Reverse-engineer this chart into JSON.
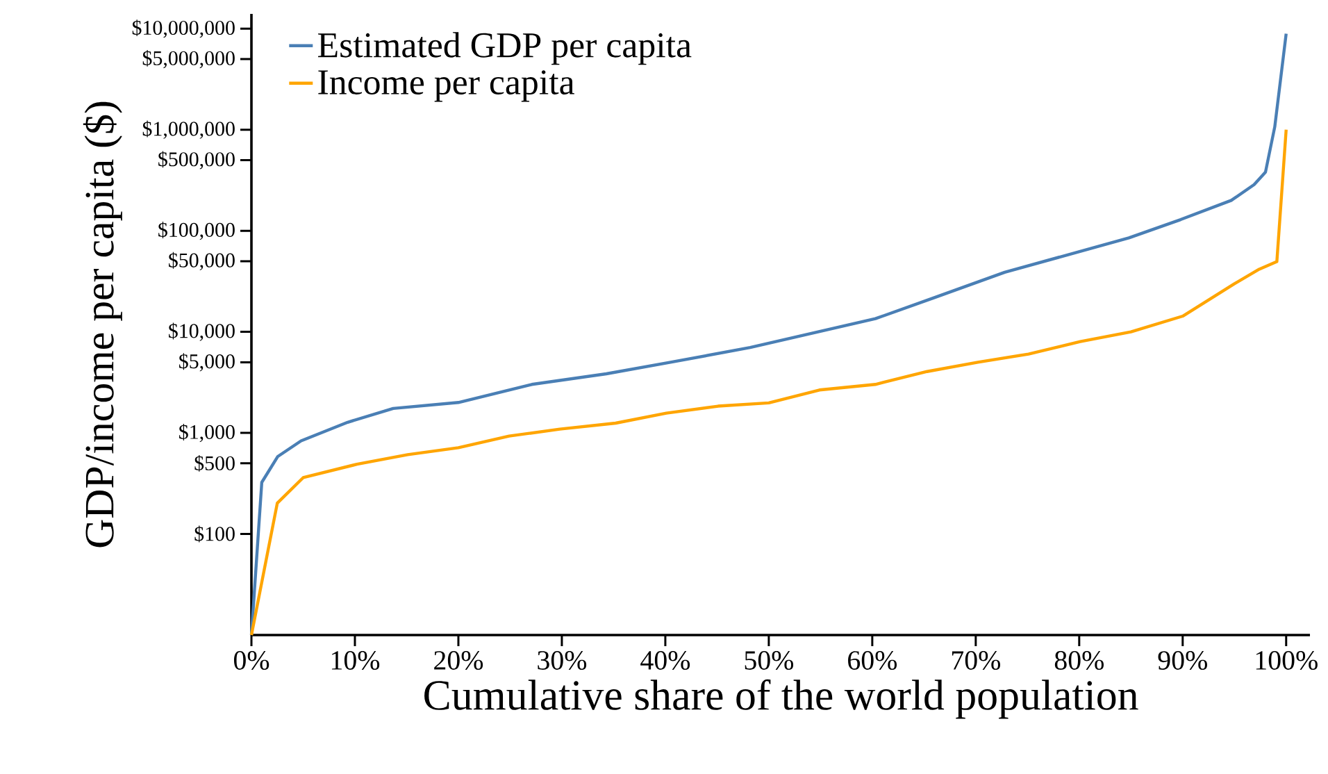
{
  "chart_data": {
    "type": "line",
    "xlabel": "Cumulative share of the world population",
    "ylabel": "GDP/income per capita ($)",
    "log": "y",
    "grid": false,
    "legend": "top left",
    "line_style": "solid",
    "xlim": [
      0,
      102.3
    ],
    "ylim": [
      10,
      14000000
    ],
    "xticks": [
      {
        "value": 0,
        "label": "0%"
      },
      {
        "value": 10,
        "label": "10%"
      },
      {
        "value": 20,
        "label": "20%"
      },
      {
        "value": 30,
        "label": "30%"
      },
      {
        "value": 40,
        "label": "40%"
      },
      {
        "value": 50,
        "label": "50%"
      },
      {
        "value": 60,
        "label": "60%"
      },
      {
        "value": 70,
        "label": "70%"
      },
      {
        "value": 80,
        "label": "80%"
      },
      {
        "value": 90,
        "label": "90%"
      },
      {
        "value": 100,
        "label": "100%"
      }
    ],
    "yticks": [
      {
        "value": 100,
        "label": "$100"
      },
      {
        "value": 500,
        "label": "$500"
      },
      {
        "value": 1000,
        "label": "$1,000"
      },
      {
        "value": 5000,
        "label": "$5,000"
      },
      {
        "value": 10000,
        "label": "$10,000"
      },
      {
        "value": 50000,
        "label": "$50,000"
      },
      {
        "value": 100000,
        "label": "$100,000"
      },
      {
        "value": 500000,
        "label": "$500,000"
      },
      {
        "value": 1000000,
        "label": "$1,000,000"
      },
      {
        "value": 5000000,
        "label": "$5,000,000"
      },
      {
        "value": 10000000,
        "label": "$10,000,000"
      }
    ],
    "series": [
      {
        "name": "Estimated GDP per capita",
        "color": "#4a7fb5",
        "x": [
          0,
          1,
          2.55,
          4.8,
          9.3,
          13.7,
          20,
          27.1,
          34.3,
          40.5,
          48.2,
          60.3,
          66,
          72.8,
          84.8,
          89.8,
          94.7,
          96.9,
          98,
          98.9,
          100
        ],
        "values": [
          10,
          324,
          585,
          835,
          1274,
          1747,
          2000,
          3020,
          3845,
          5000,
          7000,
          13500,
          21800,
          38900,
          85000,
          129000,
          200000,
          286000,
          380000,
          1070000,
          8900000
        ]
      },
      {
        "name": "Income per capita",
        "color": "#ffa500",
        "x": [
          0,
          2.5,
          5,
          10.2,
          15.1,
          20,
          24.9,
          29.8,
          35.2,
          40.1,
          45.1,
          50,
          54.9,
          60.3,
          65.3,
          70.2,
          75.1,
          80.1,
          85,
          90,
          95,
          97.4,
          99.1,
          100
        ],
        "values": [
          10,
          202,
          361,
          490,
          610,
          713,
          930,
          1090,
          1250,
          1570,
          1840,
          1980,
          2660,
          3020,
          4050,
          5000,
          6030,
          8000,
          10000,
          14300,
          29900,
          41700,
          49500,
          1000000
        ]
      }
    ]
  }
}
